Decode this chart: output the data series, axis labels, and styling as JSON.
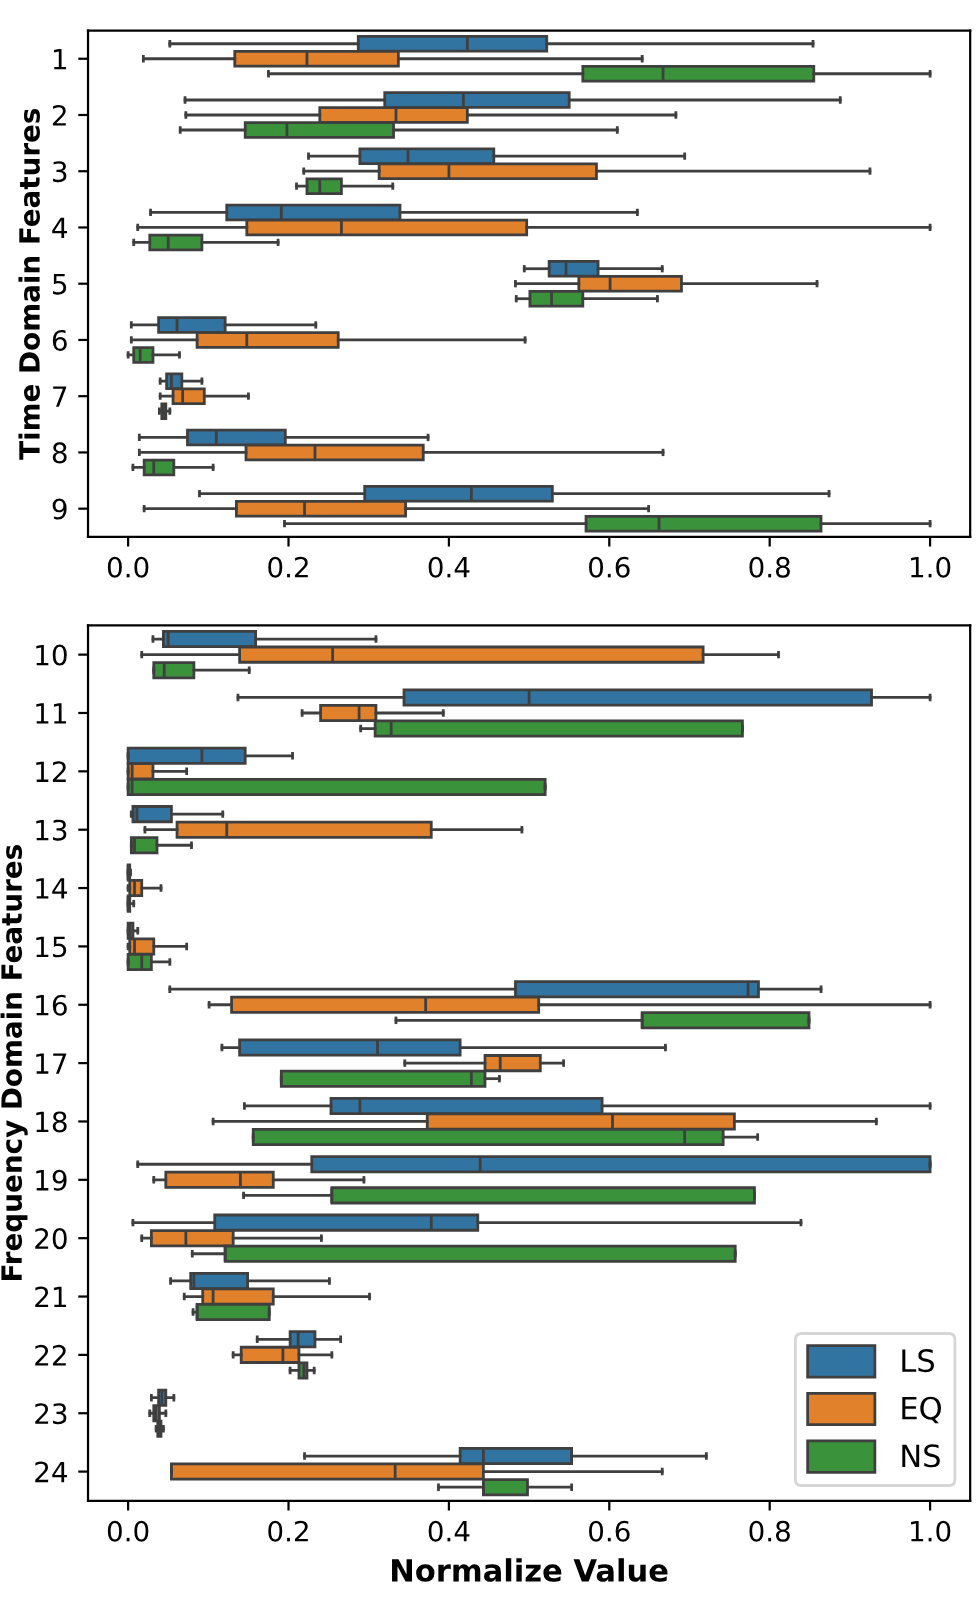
{
  "chart_data": [
    {
      "type": "box",
      "ylabel": "Time Domain Features",
      "categories": [
        "1",
        "2",
        "3",
        "4",
        "5",
        "6",
        "7",
        "8",
        "9"
      ],
      "xlim": [
        -0.05,
        1.05
      ],
      "xticks": [
        {
          "value": 0,
          "label": "0.0"
        },
        {
          "value": 0.2,
          "label": "0.2"
        },
        {
          "value": 0.4,
          "label": "0.4"
        },
        {
          "value": 0.6,
          "label": "0.6"
        },
        {
          "value": 0.8,
          "label": "0.8"
        },
        {
          "value": 1.0,
          "label": "1.0"
        }
      ],
      "orientation": "horizontal",
      "grid": false,
      "series": [
        {
          "color": "#3274a1",
          "boxes": [
            {
              "low": 0.052,
              "q1": 0.287,
              "median": 0.423,
              "q3": 0.522,
              "high": 0.854
            },
            {
              "low": 0.071,
              "q1": 0.32,
              "median": 0.418,
              "q3": 0.55,
              "high": 0.888
            },
            {
              "low": 0.225,
              "q1": 0.289,
              "median": 0.349,
              "q3": 0.456,
              "high": 0.694
            },
            {
              "low": 0.028,
              "q1": 0.123,
              "median": 0.191,
              "q3": 0.339,
              "high": 0.635
            },
            {
              "low": 0.494,
              "q1": 0.525,
              "median": 0.546,
              "q3": 0.586,
              "high": 0.666
            },
            {
              "low": 0.004,
              "q1": 0.038,
              "median": 0.061,
              "q3": 0.121,
              "high": 0.234
            },
            {
              "low": 0.04,
              "q1": 0.048,
              "median": 0.054,
              "q3": 0.067,
              "high": 0.092
            },
            {
              "low": 0.014,
              "q1": 0.074,
              "median": 0.11,
              "q3": 0.196,
              "high": 0.374
            },
            {
              "low": 0.089,
              "q1": 0.295,
              "median": 0.428,
              "q3": 0.529,
              "high": 0.874
            }
          ]
        },
        {
          "color": "#e1812c",
          "boxes": [
            {
              "low": 0.019,
              "q1": 0.133,
              "median": 0.223,
              "q3": 0.337,
              "high": 0.641
            },
            {
              "low": 0.072,
              "q1": 0.239,
              "median": 0.334,
              "q3": 0.423,
              "high": 0.683
            },
            {
              "low": 0.219,
              "q1": 0.313,
              "median": 0.4,
              "q3": 0.584,
              "high": 0.925
            },
            {
              "low": 0.012,
              "q1": 0.148,
              "median": 0.266,
              "q3": 0.497,
              "high": 1.0
            },
            {
              "low": 0.483,
              "q1": 0.562,
              "median": 0.601,
              "q3": 0.69,
              "high": 0.859
            },
            {
              "low": 0.004,
              "q1": 0.086,
              "median": 0.148,
              "q3": 0.262,
              "high": 0.495
            },
            {
              "low": 0.04,
              "q1": 0.056,
              "median": 0.068,
              "q3": 0.095,
              "high": 0.15
            },
            {
              "low": 0.014,
              "q1": 0.147,
              "median": 0.233,
              "q3": 0.368,
              "high": 0.667
            },
            {
              "low": 0.02,
              "q1": 0.135,
              "median": 0.22,
              "q3": 0.346,
              "high": 0.649
            }
          ]
        },
        {
          "color": "#3a923a",
          "boxes": [
            {
              "low": 0.175,
              "q1": 0.567,
              "median": 0.667,
              "q3": 0.855,
              "high": 1.0
            },
            {
              "low": 0.065,
              "q1": 0.146,
              "median": 0.198,
              "q3": 0.331,
              "high": 0.61
            },
            {
              "low": 0.21,
              "q1": 0.223,
              "median": 0.239,
              "q3": 0.266,
              "high": 0.33
            },
            {
              "low": 0.007,
              "q1": 0.027,
              "median": 0.05,
              "q3": 0.092,
              "high": 0.187
            },
            {
              "low": 0.484,
              "q1": 0.501,
              "median": 0.528,
              "q3": 0.567,
              "high": 0.66
            },
            {
              "low": 0.0,
              "q1": 0.007,
              "median": 0.015,
              "q3": 0.031,
              "high": 0.064
            },
            {
              "low": 0.039,
              "q1": 0.042,
              "median": 0.044,
              "q3": 0.047,
              "high": 0.052
            },
            {
              "low": 0.006,
              "q1": 0.02,
              "median": 0.032,
              "q3": 0.057,
              "high": 0.106
            },
            {
              "low": 0.195,
              "q1": 0.571,
              "median": 0.662,
              "q3": 0.864,
              "high": 1.0
            }
          ]
        }
      ]
    },
    {
      "type": "box",
      "xlabel": "Normalize Value",
      "ylabel": "Frequency Domain Features",
      "categories": [
        "10",
        "11",
        "12",
        "13",
        "14",
        "15",
        "16",
        "17",
        "18",
        "19",
        "20",
        "21",
        "22",
        "23",
        "24"
      ],
      "xlim": [
        -0.05,
        1.05
      ],
      "xticks": [
        {
          "value": 0,
          "label": "0.0"
        },
        {
          "value": 0.2,
          "label": "0.2"
        },
        {
          "value": 0.4,
          "label": "0.4"
        },
        {
          "value": 0.6,
          "label": "0.6"
        },
        {
          "value": 0.8,
          "label": "0.8"
        },
        {
          "value": 1.0,
          "label": "1.0"
        }
      ],
      "orientation": "horizontal",
      "grid": false,
      "legend": "bottom right",
      "series": [
        {
          "name": "LS",
          "color": "#3274a1",
          "boxes": [
            {
              "low": 0.031,
              "q1": 0.044,
              "median": 0.05,
              "q3": 0.159,
              "high": 0.309
            },
            {
              "low": 0.137,
              "q1": 0.344,
              "median": 0.5,
              "q3": 0.927,
              "high": 1.0
            },
            {
              "low": 0.0,
              "q1": 0.0,
              "median": 0.092,
              "q3": 0.146,
              "high": 0.205
            },
            {
              "low": 0.004,
              "q1": 0.006,
              "median": 0.011,
              "q3": 0.054,
              "high": 0.118
            },
            {
              "low": 0.0,
              "q1": 0.0,
              "median": 0.0,
              "q3": 0.002,
              "high": 0.003
            },
            {
              "low": 0.0,
              "q1": 0.0,
              "median": 0.002,
              "q3": 0.006,
              "high": 0.012
            },
            {
              "low": 0.052,
              "q1": 0.483,
              "median": 0.773,
              "q3": 0.786,
              "high": 0.864
            },
            {
              "low": 0.117,
              "q1": 0.139,
              "median": 0.311,
              "q3": 0.414,
              "high": 0.67
            },
            {
              "low": 0.145,
              "q1": 0.253,
              "median": 0.289,
              "q3": 0.591,
              "high": 1.0
            },
            {
              "low": 0.012,
              "q1": 0.229,
              "median": 0.439,
              "q3": 1.0,
              "high": 1.0
            },
            {
              "low": 0.006,
              "q1": 0.108,
              "median": 0.378,
              "q3": 0.436,
              "high": 0.839
            },
            {
              "low": 0.053,
              "q1": 0.078,
              "median": 0.082,
              "q3": 0.149,
              "high": 0.251
            },
            {
              "low": 0.161,
              "q1": 0.202,
              "median": 0.212,
              "q3": 0.233,
              "high": 0.265
            },
            {
              "low": 0.029,
              "q1": 0.038,
              "median": 0.042,
              "q3": 0.047,
              "high": 0.057
            },
            {
              "low": 0.22,
              "q1": 0.414,
              "median": 0.443,
              "q3": 0.553,
              "high": 0.721
            }
          ]
        },
        {
          "name": "EQ",
          "color": "#e1812c",
          "boxes": [
            {
              "low": 0.017,
              "q1": 0.139,
              "median": 0.255,
              "q3": 0.717,
              "high": 0.811
            },
            {
              "low": 0.217,
              "q1": 0.24,
              "median": 0.288,
              "q3": 0.309,
              "high": 0.393
            },
            {
              "low": 0.0,
              "q1": 0.0,
              "median": 0.005,
              "q3": 0.031,
              "high": 0.073
            },
            {
              "low": 0.021,
              "q1": 0.061,
              "median": 0.123,
              "q3": 0.378,
              "high": 0.491
            },
            {
              "low": 0.0,
              "q1": 0.002,
              "median": 0.008,
              "q3": 0.017,
              "high": 0.041
            },
            {
              "low": 0.0,
              "q1": 0.002,
              "median": 0.008,
              "q3": 0.032,
              "high": 0.073
            },
            {
              "low": 0.101,
              "q1": 0.129,
              "median": 0.371,
              "q3": 0.512,
              "high": 1.0
            },
            {
              "low": 0.345,
              "q1": 0.445,
              "median": 0.464,
              "q3": 0.514,
              "high": 0.543
            },
            {
              "low": 0.106,
              "q1": 0.373,
              "median": 0.604,
              "q3": 0.756,
              "high": 0.933
            },
            {
              "low": 0.032,
              "q1": 0.047,
              "median": 0.14,
              "q3": 0.181,
              "high": 0.294
            },
            {
              "low": 0.017,
              "q1": 0.029,
              "median": 0.072,
              "q3": 0.131,
              "high": 0.241
            },
            {
              "low": 0.07,
              "q1": 0.093,
              "median": 0.106,
              "q3": 0.181,
              "high": 0.301
            },
            {
              "low": 0.131,
              "q1": 0.141,
              "median": 0.193,
              "q3": 0.213,
              "high": 0.254
            },
            {
              "low": 0.027,
              "q1": 0.032,
              "median": 0.035,
              "q3": 0.039,
              "high": 0.047
            },
            {
              "low": 0.054,
              "q1": 0.054,
              "median": 0.333,
              "q3": 0.443,
              "high": 0.666
            }
          ]
        },
        {
          "name": "NS",
          "color": "#3a923a",
          "boxes": [
            {
              "low": 0.032,
              "q1": 0.032,
              "median": 0.045,
              "q3": 0.082,
              "high": 0.151
            },
            {
              "low": 0.29,
              "q1": 0.308,
              "median": 0.328,
              "q3": 0.766,
              "high": 0.766
            },
            {
              "low": 0.0,
              "q1": 0.0,
              "median": 0.005,
              "q3": 0.52,
              "high": 0.52
            },
            {
              "low": 0.004,
              "q1": 0.004,
              "median": 0.008,
              "q3": 0.036,
              "high": 0.079
            },
            {
              "low": 0.0,
              "q1": 0.0,
              "median": 0.0,
              "q3": 0.002,
              "high": 0.007
            },
            {
              "low": 0.0,
              "q1": 0.0,
              "median": 0.017,
              "q3": 0.029,
              "high": 0.052
            },
            {
              "low": 0.334,
              "q1": 0.641,
              "median": 0.641,
              "q3": 0.849,
              "high": 0.849
            },
            {
              "low": 0.191,
              "q1": 0.191,
              "median": 0.428,
              "q3": 0.445,
              "high": 0.463
            },
            {
              "low": 0.156,
              "q1": 0.156,
              "median": 0.694,
              "q3": 0.742,
              "high": 0.785
            },
            {
              "low": 0.144,
              "q1": 0.254,
              "median": 0.254,
              "q3": 0.781,
              "high": 0.781
            },
            {
              "low": 0.08,
              "q1": 0.121,
              "median": 0.121,
              "q3": 0.757,
              "high": 0.757
            },
            {
              "low": 0.081,
              "q1": 0.086,
              "median": 0.086,
              "q3": 0.176,
              "high": 0.176
            },
            {
              "low": 0.202,
              "q1": 0.213,
              "median": 0.219,
              "q3": 0.223,
              "high": 0.232
            },
            {
              "low": 0.035,
              "q1": 0.037,
              "median": 0.038,
              "q3": 0.041,
              "high": 0.044
            },
            {
              "low": 0.387,
              "q1": 0.443,
              "median": 0.443,
              "q3": 0.498,
              "high": 0.553
            }
          ]
        }
      ]
    }
  ]
}
